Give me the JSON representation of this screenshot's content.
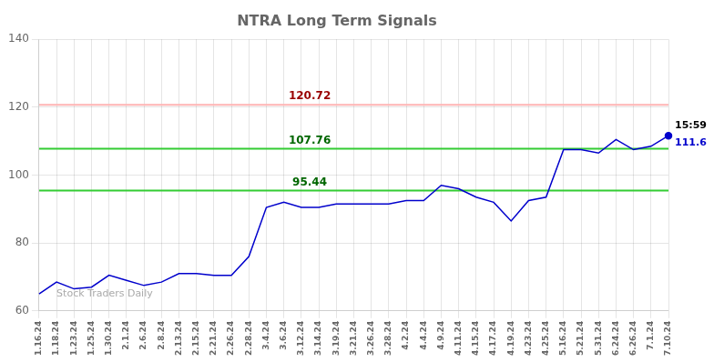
{
  "chart_data": {
    "type": "line",
    "title": "NTRA Long Term Signals",
    "categories": [
      "1.16.24",
      "1.18.24",
      "1.23.24",
      "1.25.24",
      "1.30.24",
      "2.1.24",
      "2.6.24",
      "2.8.24",
      "2.13.24",
      "2.15.24",
      "2.21.24",
      "2.26.24",
      "2.28.24",
      "3.4.24",
      "3.6.24",
      "3.12.24",
      "3.14.24",
      "3.19.24",
      "3.21.24",
      "3.26.24",
      "3.28.24",
      "4.2.24",
      "4.4.24",
      "4.9.24",
      "4.11.24",
      "4.15.24",
      "4.17.24",
      "4.19.24",
      "4.23.24",
      "4.25.24",
      "5.16.24",
      "5.21.24",
      "5.31.24",
      "6.24.24",
      "6.26.24",
      "7.1.24",
      "7.10.24"
    ],
    "values": [
      65.0,
      68.5,
      66.5,
      67.0,
      70.5,
      69.0,
      67.5,
      68.5,
      71.0,
      71.0,
      70.5,
      70.5,
      76.0,
      90.5,
      92.0,
      90.5,
      90.5,
      91.5,
      91.5,
      91.5,
      91.5,
      92.5,
      92.5,
      97.0,
      96.0,
      93.5,
      92.0,
      86.5,
      92.5,
      93.5,
      107.5,
      107.5,
      106.5,
      110.5,
      107.5,
      108.5,
      111.6
    ],
    "color": "#0000cc",
    "ylim": [
      60,
      140
    ],
    "yticks": [
      60,
      80,
      100,
      120,
      140
    ],
    "grid": true,
    "lines": [
      {
        "y": 120.72,
        "color": "#ffb3b3",
        "label": "120.72",
        "label_color": "#990000"
      },
      {
        "y": 107.76,
        "color": "#33cc33",
        "label": "107.76",
        "label_color": "#006600"
      },
      {
        "y": 95.44,
        "color": "#33cc33",
        "label": "95.44",
        "label_color": "#006600"
      }
    ],
    "annotations": [
      {
        "text": "15:59",
        "x": "7.10.24",
        "y": 111.6,
        "color": "#000000",
        "position": "above"
      },
      {
        "text": "111.6",
        "x": "7.10.24",
        "y": 111.6,
        "color": "#0000cc",
        "position": "below"
      },
      {
        "text": "Stock Traders Daily",
        "x": "1.18.24",
        "y": 63.5,
        "color": "#aaaaaa",
        "position": "right"
      }
    ]
  }
}
